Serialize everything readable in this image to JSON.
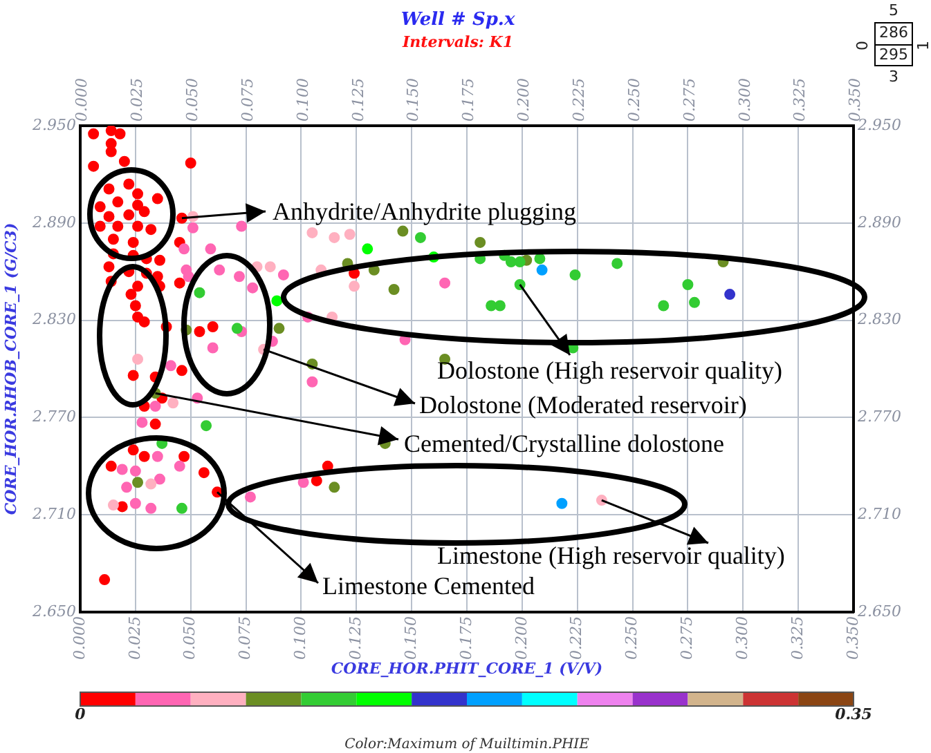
{
  "chart_data": {
    "type": "scatter",
    "title": "Well # Sp.x",
    "subtitle": "Intervals: K1",
    "xlabel": "CORE_HOR.PHIT_CORE_1 (V/V)",
    "ylabel": "CORE_HOR.RHOB_CORE_1 (G/C3)",
    "clabel": "Color:Maximum of Muiltimin.PHIE",
    "x": [
      0.006,
      0.014,
      0.018,
      0.014,
      0.014,
      0.006,
      0.02,
      0.05,
      0.013,
      0.022,
      0.026,
      0.035,
      0.009,
      0.017,
      0.026,
      0.013,
      0.022,
      0.029,
      0.009,
      0.017,
      0.026,
      0.032,
      0.015,
      0.024,
      0.046,
      0.045,
      0.015,
      0.024,
      0.03,
      0.036,
      0.013,
      0.022,
      0.03,
      0.035,
      0.014,
      0.026,
      0.036,
      0.045,
      0.023,
      0.025,
      0.026,
      0.029,
      0.039,
      0.054,
      0.06,
      0.124,
      0.024,
      0.046,
      0.034,
      0.037,
      0.029,
      0.034,
      0.024,
      0.029,
      0.047,
      0.014,
      0.056,
      0.062,
      0.019,
      0.011,
      0.107,
      0.112,
      0.051,
      0.047,
      0.059,
      0.048,
      0.049,
      0.063,
      0.073,
      0.072,
      0.078,
      0.092,
      0.103,
      0.087,
      0.073,
      0.06,
      0.041,
      0.105,
      0.147,
      0.165,
      0.053,
      0.034,
      0.028,
      0.035,
      0.019,
      0.025,
      0.045,
      0.036,
      0.021,
      0.025,
      0.032,
      0.077,
      0.101,
      0.051,
      0.08,
      0.086,
      0.105,
      0.115,
      0.122,
      0.109,
      0.124,
      0.114,
      0.083,
      0.026,
      0.042,
      0.032,
      0.015,
      0.236,
      0.09,
      0.048,
      0.105,
      0.121,
      0.133,
      0.142,
      0.146,
      0.165,
      0.034,
      0.026,
      0.115,
      0.138,
      0.181,
      0.202,
      0.291,
      0.054,
      0.071,
      0.154,
      0.057,
      0.037,
      0.046,
      0.181,
      0.192,
      0.195,
      0.199,
      0.208,
      0.199,
      0.224,
      0.243,
      0.186,
      0.19,
      0.264,
      0.275,
      0.278,
      0.223,
      0.089,
      0.13,
      0.16,
      0.294,
      0.209,
      0.218
    ],
    "values": [
      2.945,
      2.947,
      2.945,
      2.939,
      2.934,
      2.925,
      2.928,
      2.927,
      2.911,
      2.914,
      2.908,
      2.905,
      2.9,
      2.903,
      2.901,
      2.894,
      2.895,
      2.897,
      2.888,
      2.888,
      2.888,
      2.886,
      2.88,
      2.878,
      2.893,
      2.878,
      2.871,
      2.87,
      2.868,
      2.867,
      2.863,
      2.86,
      2.859,
      2.857,
      2.854,
      2.851,
      2.851,
      2.853,
      2.846,
      2.839,
      2.832,
      2.829,
      2.826,
      2.823,
      2.826,
      2.859,
      2.796,
      2.799,
      2.795,
      2.782,
      2.777,
      2.766,
      2.75,
      2.746,
      2.746,
      2.74,
      2.736,
      2.724,
      2.715,
      2.67,
      2.731,
      2.74,
      2.887,
      2.874,
      2.874,
      2.861,
      2.857,
      2.861,
      2.888,
      2.857,
      2.85,
      2.858,
      2.832,
      2.817,
      2.823,
      2.813,
      2.802,
      2.792,
      2.818,
      2.853,
      2.782,
      2.777,
      2.767,
      2.746,
      2.738,
      2.737,
      2.74,
      2.732,
      2.727,
      2.717,
      2.714,
      2.721,
      2.73,
      2.894,
      2.863,
      2.863,
      2.884,
      2.881,
      2.883,
      2.861,
      2.851,
      2.832,
      2.812,
      2.806,
      2.779,
      2.729,
      2.716,
      2.719,
      2.825,
      2.824,
      2.803,
      2.865,
      2.861,
      2.849,
      2.885,
      2.806,
      2.785,
      2.73,
      2.727,
      2.754,
      2.878,
      2.867,
      2.866,
      2.847,
      2.825,
      2.881,
      2.765,
      2.754,
      2.714,
      2.868,
      2.87,
      2.866,
      2.866,
      2.868,
      2.852,
      2.858,
      2.865,
      2.839,
      2.839,
      2.839,
      2.852,
      2.841,
      2.813,
      2.842,
      2.874,
      2.869,
      2.846,
      2.861,
      2.717
    ],
    "cvalues": [
      0.01,
      0.01,
      0.01,
      0.01,
      0.01,
      0.01,
      0.01,
      0.01,
      0.01,
      0.01,
      0.01,
      0.01,
      0.01,
      0.01,
      0.01,
      0.01,
      0.01,
      0.01,
      0.01,
      0.01,
      0.01,
      0.01,
      0.01,
      0.01,
      0.01,
      0.01,
      0.01,
      0.01,
      0.01,
      0.01,
      0.01,
      0.01,
      0.01,
      0.01,
      0.01,
      0.01,
      0.01,
      0.01,
      0.01,
      0.01,
      0.01,
      0.01,
      0.01,
      0.01,
      0.01,
      0.01,
      0.01,
      0.01,
      0.01,
      0.01,
      0.01,
      0.01,
      0.01,
      0.01,
      0.01,
      0.01,
      0.01,
      0.01,
      0.01,
      0.01,
      0.01,
      0.01,
      0.04,
      0.04,
      0.04,
      0.04,
      0.04,
      0.04,
      0.04,
      0.04,
      0.04,
      0.04,
      0.04,
      0.04,
      0.04,
      0.04,
      0.04,
      0.04,
      0.04,
      0.04,
      0.04,
      0.04,
      0.04,
      0.04,
      0.04,
      0.04,
      0.04,
      0.04,
      0.04,
      0.04,
      0.04,
      0.04,
      0.04,
      0.06,
      0.06,
      0.06,
      0.06,
      0.06,
      0.06,
      0.06,
      0.06,
      0.06,
      0.06,
      0.06,
      0.06,
      0.06,
      0.06,
      0.06,
      0.09,
      0.09,
      0.09,
      0.09,
      0.09,
      0.09,
      0.09,
      0.09,
      0.09,
      0.09,
      0.09,
      0.09,
      0.09,
      0.09,
      0.09,
      0.11,
      0.11,
      0.11,
      0.11,
      0.11,
      0.11,
      0.11,
      0.11,
      0.11,
      0.11,
      0.11,
      0.11,
      0.11,
      0.11,
      0.11,
      0.11,
      0.11,
      0.11,
      0.11,
      0.11,
      0.14,
      0.14,
      0.14,
      0.16,
      0.19,
      0.19
    ],
    "clim": [
      0,
      0.35
    ],
    "cticks": [
      0,
      0.35
    ],
    "xlim": [
      0,
      0.35
    ],
    "xticks": [
      {
        "value": 0,
        "label": "0.000"
      },
      {
        "value": 0.025,
        "label": "0.025"
      },
      {
        "value": 0.05,
        "label": "0.050"
      },
      {
        "value": 0.075,
        "label": "0.075"
      },
      {
        "value": 0.1,
        "label": "0.100"
      },
      {
        "value": 0.125,
        "label": "0.125"
      },
      {
        "value": 0.15,
        "label": "0.150"
      },
      {
        "value": 0.175,
        "label": "0.175"
      },
      {
        "value": 0.2,
        "label": "0.200"
      },
      {
        "value": 0.225,
        "label": "0.225"
      },
      {
        "value": 0.25,
        "label": "0.250"
      },
      {
        "value": 0.275,
        "label": "0.275"
      },
      {
        "value": 0.3,
        "label": "0.300"
      },
      {
        "value": 0.325,
        "label": "0.325"
      },
      {
        "value": 0.35,
        "label": "0.350"
      }
    ],
    "x2lim": [
      0,
      0.35
    ],
    "x2ticks": [
      {
        "value": 0,
        "label": "0.000"
      },
      {
        "value": 0.025,
        "label": "0.025"
      },
      {
        "value": 0.05,
        "label": "0.050"
      },
      {
        "value": 0.075,
        "label": "0.075"
      },
      {
        "value": 0.1,
        "label": "0.100"
      },
      {
        "value": 0.125,
        "label": "0.125"
      },
      {
        "value": 0.15,
        "label": "0.150"
      },
      {
        "value": 0.175,
        "label": "0.175"
      },
      {
        "value": 0.2,
        "label": "0.200"
      },
      {
        "value": 0.225,
        "label": "0.225"
      },
      {
        "value": 0.25,
        "label": "0.250"
      },
      {
        "value": 0.275,
        "label": "0.275"
      },
      {
        "value": 0.3,
        "label": "0.300"
      },
      {
        "value": 0.325,
        "label": "0.325"
      },
      {
        "value": 0.35,
        "label": "0.350"
      }
    ],
    "ylim": [
      2.65,
      2.95
    ],
    "yticks": [
      {
        "value": 2.65,
        "label": "2.650"
      },
      {
        "value": 2.71,
        "label": "2.710"
      },
      {
        "value": 2.77,
        "label": "2.770"
      },
      {
        "value": 2.83,
        "label": "2.830"
      },
      {
        "value": 2.89,
        "label": "2.890"
      },
      {
        "value": 2.95,
        "label": "2.950"
      }
    ],
    "y2lim": [
      2.65,
      2.95
    ],
    "y2ticks": [
      {
        "value": 2.65,
        "label": "2.650"
      },
      {
        "value": 2.71,
        "label": "2.710"
      },
      {
        "value": 2.77,
        "label": "2.770"
      },
      {
        "value": 2.83,
        "label": "2.830"
      },
      {
        "value": 2.89,
        "label": "2.890"
      },
      {
        "value": 2.95,
        "label": "2.950"
      }
    ],
    "grid": true,
    "legend": false,
    "marker": "circle",
    "annotations": [
      {
        "text": "Anhydrite/Anhydrite plugging",
        "x": 0.046,
        "y": 2.893
      },
      {
        "text": "Dolostone (High reservoir quality)",
        "x": 0.199,
        "y": 2.852
      },
      {
        "text": "Dolostone (Moderated reservoir)",
        "x": 0.083,
        "y": 2.812
      },
      {
        "text": "Cemented/Crystalline dolostone",
        "x": 0.034,
        "y": 2.785
      },
      {
        "text": "Limestone (High reservoir quality)",
        "x": 0.236,
        "y": 2.719
      },
      {
        "text": "Limestone Cemented",
        "x": 0.062,
        "y": 2.724
      },
      "5",
      "286",
      "295",
      "3",
      "0",
      "1"
    ]
  }
}
